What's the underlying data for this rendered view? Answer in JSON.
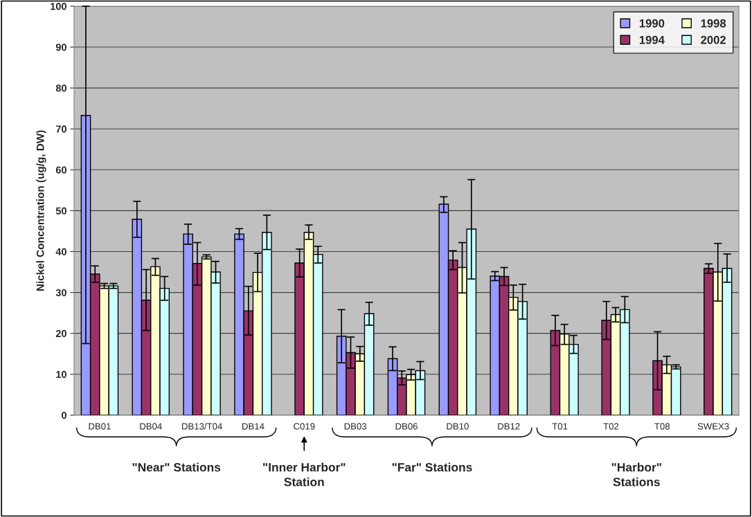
{
  "chart_data": {
    "type": "bar",
    "ylabel": "Nickel Concentration (ug/g, DW)",
    "categories": [
      "DB01",
      "DB04",
      "DB13/T04",
      "DB14",
      "C019",
      "DB03",
      "DB06",
      "DB10",
      "DB12",
      "T01",
      "T02",
      "T08",
      "SWEX3"
    ],
    "series": [
      {
        "name": "1990",
        "color": "#9999ff",
        "values": [
          73.3,
          47.9,
          44.3,
          44.3,
          null,
          19.3,
          13.8,
          51.6,
          34.0,
          null,
          null,
          null,
          null
        ],
        "errors": [
          [
            17.5,
            100
          ],
          [
            43.5,
            52.3
          ],
          [
            41.8,
            46.7
          ],
          [
            43.0,
            45.6
          ],
          null,
          [
            12.8,
            25.8
          ],
          [
            10.9,
            16.7
          ],
          [
            49.6,
            53.4
          ],
          [
            32.9,
            35.1
          ],
          null,
          null,
          null,
          null
        ]
      },
      {
        "name": "1994",
        "color": "#993366",
        "values": [
          34.5,
          28.1,
          37.1,
          25.5,
          37.2,
          15.3,
          9.1,
          37.9,
          33.9,
          20.7,
          23.2,
          13.3,
          35.9
        ],
        "errors": [
          [
            32.5,
            36.5
          ],
          [
            20.7,
            35.6
          ],
          [
            31.8,
            42.2
          ],
          [
            19.6,
            31.5
          ],
          [
            33.8,
            40.6
          ],
          [
            11.5,
            19.1
          ],
          [
            7.4,
            10.8
          ],
          [
            35.6,
            40.2
          ],
          [
            31.7,
            36.1
          ],
          [
            17.0,
            24.4
          ],
          [
            18.5,
            27.8
          ],
          [
            6.2,
            20.4
          ],
          [
            34.7,
            37.0
          ]
        ]
      },
      {
        "name": "1998",
        "color": "#ffffcc",
        "values": [
          31.6,
          36.3,
          38.7,
          34.9,
          44.7,
          15.0,
          9.9,
          36.1,
          28.8,
          19.8,
          24.6,
          12.3,
          35.0
        ],
        "errors": [
          [
            31.0,
            32.2
          ],
          [
            34.2,
            38.3
          ],
          [
            38.2,
            39.2
          ],
          [
            30.2,
            39.6
          ],
          [
            43.0,
            46.5
          ],
          [
            13.2,
            16.8
          ],
          [
            8.6,
            11.2
          ],
          [
            29.9,
            42.2
          ],
          [
            25.7,
            31.8
          ],
          [
            17.3,
            22.2
          ],
          [
            22.8,
            26.3
          ],
          [
            10.2,
            14.4
          ],
          [
            27.9,
            42.0
          ]
        ]
      },
      {
        "name": "2002",
        "color": "#ccffff",
        "values": [
          31.6,
          31.0,
          35.0,
          44.7,
          39.3,
          24.8,
          10.9,
          45.5,
          27.8,
          17.3,
          25.8,
          11.8,
          35.9
        ],
        "errors": [
          [
            31.0,
            32.2
          ],
          [
            28.1,
            33.9
          ],
          [
            32.3,
            37.6
          ],
          [
            40.5,
            48.9
          ],
          [
            37.2,
            41.3
          ],
          [
            22.0,
            27.6
          ],
          [
            8.7,
            13.1
          ],
          [
            33.3,
            57.6
          ],
          [
            23.5,
            32.0
          ],
          [
            15.1,
            19.5
          ],
          [
            22.6,
            29.0
          ],
          [
            11.3,
            12.3
          ],
          [
            32.5,
            39.4
          ]
        ]
      }
    ],
    "ylim": [
      0,
      100
    ],
    "yticks": [
      0,
      10,
      20,
      30,
      40,
      50,
      60,
      70,
      80,
      90,
      100
    ],
    "grid": "y",
    "legend": "top right",
    "annotations": [
      "\"Near\" Stations",
      "\"Inner Harbor\"\nStation",
      "\"Far\" Stations",
      "\"Harbor\"\nStations"
    ]
  }
}
